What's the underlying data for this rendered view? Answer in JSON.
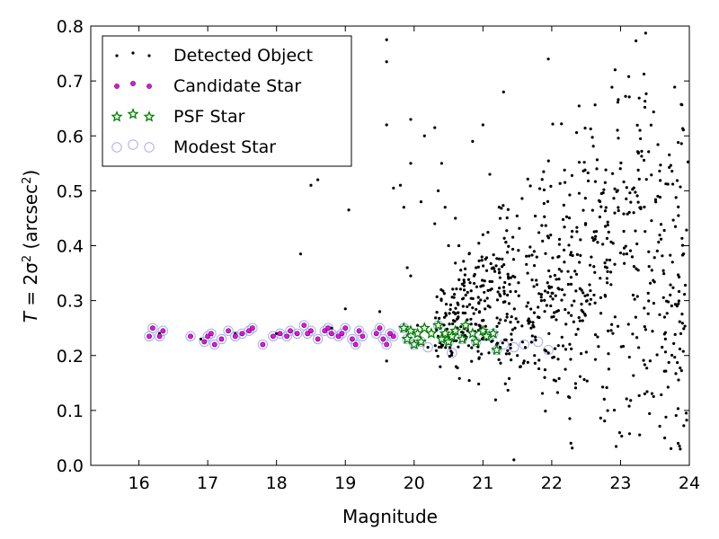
{
  "chart_data": {
    "type": "scatter",
    "title": "",
    "xlabel": "Magnitude",
    "ylabel_parts": {
      "prefix": "T",
      "mid": " = 2σ",
      "sup1": "2",
      "unit": " (arcsec",
      "sup2": "2",
      "close": ")"
    },
    "xlim": [
      15.3,
      24
    ],
    "ylim": [
      0.0,
      0.8
    ],
    "xticks": [
      16,
      17,
      18,
      19,
      20,
      21,
      22,
      23,
      24
    ],
    "yticks": [
      0.0,
      0.1,
      0.2,
      0.3,
      0.4,
      0.5,
      0.6,
      0.7,
      0.8
    ],
    "xtick_labels": [
      "16",
      "17",
      "18",
      "19",
      "20",
      "21",
      "22",
      "23",
      "24"
    ],
    "ytick_labels": [
      "0.0",
      "0.1",
      "0.2",
      "0.3",
      "0.4",
      "0.5",
      "0.6",
      "0.7",
      "0.8"
    ],
    "grid": false,
    "legend_position": "top-left",
    "series": [
      {
        "name": "Detected Object",
        "marker": "dot",
        "color": "#000000",
        "note_generation": "field",
        "points": [
          [
            16.3,
            0.24
          ],
          [
            16.9,
            0.23
          ],
          [
            17.4,
            0.24
          ],
          [
            18.0,
            0.24
          ],
          [
            18.35,
            0.385
          ],
          [
            18.5,
            0.51
          ],
          [
            18.6,
            0.52
          ],
          [
            18.8,
            0.25
          ],
          [
            19.0,
            0.285
          ],
          [
            19.05,
            0.465
          ],
          [
            19.2,
            0.245
          ],
          [
            19.5,
            0.28
          ],
          [
            19.6,
            0.19
          ],
          [
            19.6,
            0.62
          ],
          [
            19.6,
            0.735
          ],
          [
            19.6,
            0.775
          ],
          [
            19.7,
            0.505
          ],
          [
            19.8,
            0.51
          ],
          [
            19.85,
            0.47
          ],
          [
            19.9,
            0.36
          ],
          [
            19.95,
            0.345
          ],
          [
            19.95,
            0.63
          ],
          [
            19.95,
            0.55
          ],
          [
            20.05,
            0.255
          ],
          [
            20.1,
            0.48
          ],
          [
            20.15,
            0.6
          ],
          [
            20.2,
            0.215
          ],
          [
            20.3,
            0.615
          ],
          [
            20.3,
            0.44
          ],
          [
            20.35,
            0.5
          ],
          [
            20.4,
            0.55
          ],
          [
            20.45,
            0.47
          ],
          [
            20.5,
            0.4
          ],
          [
            20.55,
            0.205
          ],
          [
            20.6,
            0.45
          ],
          [
            20.65,
            0.4
          ],
          [
            20.7,
            0.33
          ],
          [
            20.75,
            0.31
          ],
          [
            20.8,
            0.385
          ],
          [
            20.85,
            0.59
          ],
          [
            20.9,
            0.36
          ],
          [
            20.95,
            0.28
          ],
          [
            21.0,
            0.62
          ],
          [
            21.0,
            0.42
          ],
          [
            21.05,
            0.23
          ],
          [
            21.1,
            0.53
          ],
          [
            21.15,
            0.36
          ],
          [
            21.2,
            0.22
          ],
          [
            21.25,
            0.215
          ],
          [
            21.3,
            0.68
          ],
          [
            21.35,
            0.27
          ],
          [
            21.4,
            0.22
          ],
          [
            21.45,
            0.01
          ],
          [
            21.5,
            0.2
          ],
          [
            21.55,
            0.18
          ],
          [
            21.6,
            0.19
          ],
          [
            21.65,
            0.35
          ],
          [
            21.7,
            0.25
          ],
          [
            21.75,
            0.2
          ],
          [
            21.8,
            0.27
          ],
          [
            21.85,
            0.3
          ],
          [
            21.9,
            0.21
          ],
          [
            21.95,
            0.74
          ],
          [
            22.0,
            0.27
          ]
        ]
      },
      {
        "name": "Candidate Star",
        "marker": "small-circle",
        "color": "#ff00ff",
        "points": [
          [
            16.2,
            0.25
          ],
          [
            16.15,
            0.235
          ],
          [
            16.3,
            0.235
          ],
          [
            16.35,
            0.245
          ],
          [
            16.75,
            0.235
          ],
          [
            16.95,
            0.225
          ],
          [
            17.0,
            0.235
          ],
          [
            17.05,
            0.24
          ],
          [
            17.1,
            0.22
          ],
          [
            17.2,
            0.23
          ],
          [
            17.3,
            0.245
          ],
          [
            17.4,
            0.235
          ],
          [
            17.5,
            0.24
          ],
          [
            17.6,
            0.245
          ],
          [
            17.65,
            0.25
          ],
          [
            17.8,
            0.22
          ],
          [
            17.95,
            0.235
          ],
          [
            18.05,
            0.24
          ],
          [
            18.15,
            0.235
          ],
          [
            18.2,
            0.245
          ],
          [
            18.3,
            0.24
          ],
          [
            18.4,
            0.255
          ],
          [
            18.45,
            0.24
          ],
          [
            18.5,
            0.245
          ],
          [
            18.6,
            0.23
          ],
          [
            18.7,
            0.245
          ],
          [
            18.75,
            0.25
          ],
          [
            18.8,
            0.24
          ],
          [
            18.9,
            0.235
          ],
          [
            18.95,
            0.24
          ],
          [
            19.0,
            0.25
          ],
          [
            19.1,
            0.23
          ],
          [
            19.15,
            0.22
          ],
          [
            19.2,
            0.245
          ],
          [
            19.25,
            0.235
          ],
          [
            19.45,
            0.24
          ],
          [
            19.5,
            0.25
          ],
          [
            19.55,
            0.23
          ],
          [
            19.6,
            0.22
          ],
          [
            19.65,
            0.24
          ],
          [
            19.7,
            0.235
          ]
        ]
      },
      {
        "name": "PSF Star",
        "marker": "star",
        "color": "#008000",
        "points": [
          [
            19.85,
            0.25
          ],
          [
            19.9,
            0.23
          ],
          [
            19.95,
            0.245
          ],
          [
            20.0,
            0.22
          ],
          [
            20.05,
            0.24
          ],
          [
            20.1,
            0.225
          ],
          [
            20.15,
            0.25
          ],
          [
            20.25,
            0.24
          ],
          [
            20.35,
            0.255
          ],
          [
            20.4,
            0.23
          ],
          [
            20.45,
            0.24
          ],
          [
            20.5,
            0.225
          ],
          [
            20.55,
            0.235
          ],
          [
            20.6,
            0.245
          ],
          [
            20.7,
            0.23
          ],
          [
            20.75,
            0.255
          ],
          [
            20.85,
            0.24
          ],
          [
            20.9,
            0.225
          ],
          [
            21.0,
            0.245
          ],
          [
            21.05,
            0.235
          ],
          [
            21.15,
            0.24
          ],
          [
            21.2,
            0.21
          ]
        ]
      },
      {
        "name": "Modest Star",
        "marker": "open-circle",
        "color": "#aaaaf0",
        "points": [
          [
            16.2,
            0.25
          ],
          [
            16.15,
            0.235
          ],
          [
            16.3,
            0.235
          ],
          [
            16.35,
            0.245
          ],
          [
            16.75,
            0.235
          ],
          [
            16.95,
            0.225
          ],
          [
            17.0,
            0.235
          ],
          [
            17.05,
            0.24
          ],
          [
            17.1,
            0.22
          ],
          [
            17.2,
            0.23
          ],
          [
            17.3,
            0.245
          ],
          [
            17.4,
            0.235
          ],
          [
            17.5,
            0.24
          ],
          [
            17.6,
            0.245
          ],
          [
            17.65,
            0.25
          ],
          [
            17.8,
            0.22
          ],
          [
            17.95,
            0.235
          ],
          [
            18.05,
            0.24
          ],
          [
            18.15,
            0.235
          ],
          [
            18.2,
            0.245
          ],
          [
            18.3,
            0.24
          ],
          [
            18.4,
            0.255
          ],
          [
            18.45,
            0.24
          ],
          [
            18.5,
            0.245
          ],
          [
            18.6,
            0.23
          ],
          [
            18.7,
            0.245
          ],
          [
            18.75,
            0.25
          ],
          [
            18.8,
            0.24
          ],
          [
            18.9,
            0.235
          ],
          [
            18.95,
            0.24
          ],
          [
            19.0,
            0.25
          ],
          [
            19.1,
            0.23
          ],
          [
            19.15,
            0.22
          ],
          [
            19.2,
            0.245
          ],
          [
            19.25,
            0.235
          ],
          [
            19.45,
            0.24
          ],
          [
            19.5,
            0.25
          ],
          [
            19.55,
            0.23
          ],
          [
            19.6,
            0.22
          ],
          [
            19.65,
            0.24
          ],
          [
            19.7,
            0.235
          ],
          [
            19.85,
            0.25
          ],
          [
            19.9,
            0.23
          ],
          [
            20.0,
            0.22
          ],
          [
            20.1,
            0.225
          ],
          [
            20.2,
            0.215
          ],
          [
            20.35,
            0.255
          ],
          [
            20.5,
            0.225
          ],
          [
            20.55,
            0.205
          ],
          [
            20.7,
            0.23
          ],
          [
            20.9,
            0.225
          ],
          [
            21.05,
            0.235
          ],
          [
            21.15,
            0.24
          ],
          [
            21.2,
            0.21
          ],
          [
            21.3,
            0.22
          ],
          [
            21.45,
            0.215
          ],
          [
            21.6,
            0.22
          ],
          [
            21.8,
            0.225
          ],
          [
            21.95,
            0.21
          ]
        ]
      }
    ]
  }
}
